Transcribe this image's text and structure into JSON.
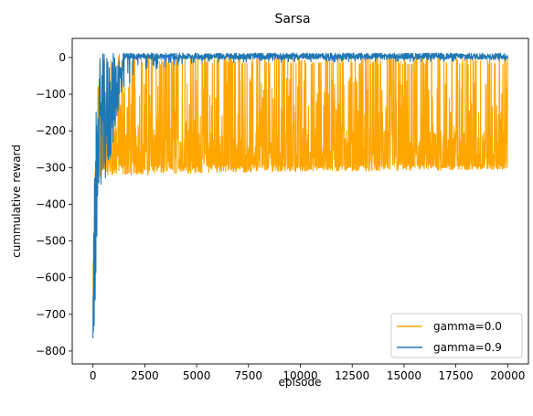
{
  "chart_data": {
    "type": "line",
    "title": "Sarsa",
    "xlabel": "episode",
    "ylabel": "cummulative reward",
    "xlim": [
      -1000,
      21000
    ],
    "ylim": [
      -835,
      52
    ],
    "x_ticks": [
      0,
      2500,
      5000,
      7500,
      10000,
      12500,
      15000,
      17500,
      20000
    ],
    "y_ticks": [
      0,
      -100,
      -200,
      -300,
      -400,
      -500,
      -600,
      -700,
      -800
    ],
    "grid": false,
    "legend_position": "lower-right",
    "series": [
      {
        "name": "gamma=0.0",
        "color": "#ffa500",
        "episodes": 20000,
        "envelope": [
          {
            "x": 0,
            "min": -760,
            "max": -600
          },
          {
            "x": 80,
            "min": -720,
            "max": -300
          },
          {
            "x": 200,
            "min": -500,
            "max": -50
          },
          {
            "x": 300,
            "min": -330,
            "max": 0
          },
          {
            "x": 600,
            "min": -320,
            "max": 10
          },
          {
            "x": 1000,
            "min": -320,
            "max": 10
          },
          {
            "x": 2500,
            "min": -320,
            "max": 5
          },
          {
            "x": 5000,
            "min": -315,
            "max": 5
          },
          {
            "x": 10000,
            "min": -310,
            "max": 5
          },
          {
            "x": 15000,
            "min": -310,
            "max": 5
          },
          {
            "x": 20000,
            "min": -305,
            "max": 5
          }
        ],
        "typical_band": [
          -300,
          -200
        ]
      },
      {
        "name": "gamma=0.9",
        "color": "#1f77b4",
        "episodes": 20000,
        "envelope": [
          {
            "x": 0,
            "min": -795,
            "max": -650
          },
          {
            "x": 50,
            "min": -790,
            "max": -400
          },
          {
            "x": 150,
            "min": -600,
            "max": -150
          },
          {
            "x": 300,
            "min": -330,
            "max": 5
          },
          {
            "x": 500,
            "min": -370,
            "max": 12
          },
          {
            "x": 800,
            "min": -300,
            "max": 12
          },
          {
            "x": 1200,
            "min": -150,
            "max": 12
          },
          {
            "x": 2000,
            "min": -40,
            "max": 12
          },
          {
            "x": 5000,
            "min": -15,
            "max": 12
          },
          {
            "x": 20000,
            "min": -10,
            "max": 12
          }
        ],
        "typical_band": [
          -5,
          12
        ]
      }
    ]
  }
}
